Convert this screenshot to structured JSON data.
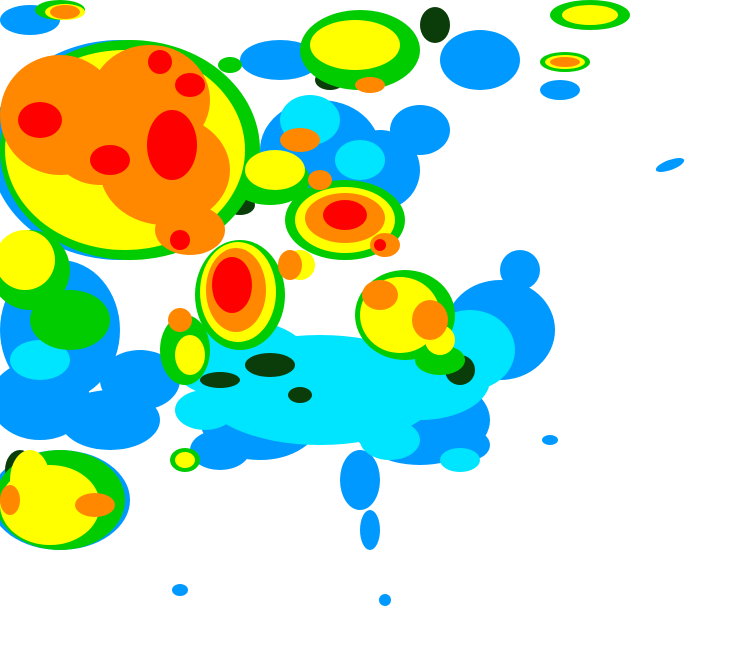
{
  "map": {
    "type": "weather-radar-precipitation",
    "background": "#ffffff",
    "intensity_colors": {
      "light_blue": "#0099ff",
      "cyan": "#00e5ff",
      "green": "#00cc00",
      "dark_green": "#0a3d0a",
      "yellow": "#ffff00",
      "orange": "#ff8800",
      "red": "#ff0000"
    }
  }
}
